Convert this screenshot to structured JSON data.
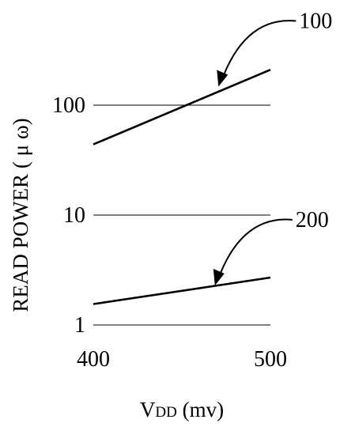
{
  "chart_data": {
    "type": "line",
    "title": "",
    "ylabel": "READ POWER ( μ ω)",
    "xlabel_main": "V",
    "xlabel_sub": "DD",
    "xlabel_unit": " (mv)",
    "y_scale": "log",
    "ylim": [
      1,
      100
    ],
    "xlim": [
      400,
      500
    ],
    "grid": true,
    "x_ticks": [
      {
        "value": 400,
        "label": "400"
      },
      {
        "value": 500,
        "label": "500"
      }
    ],
    "y_ticks": [
      {
        "value": 1,
        "label": "1"
      },
      {
        "value": 10,
        "label": "10"
      },
      {
        "value": 100,
        "label": "100"
      }
    ],
    "series": [
      {
        "x": [
          400,
          500
        ],
        "y": [
          44,
          210
        ]
      },
      {
        "x": [
          400,
          500
        ],
        "y": [
          1.55,
          2.7
        ]
      }
    ],
    "annotations": [
      {
        "label": "100",
        "x": 472,
        "y": 150
      },
      {
        "label": "200",
        "x": 470,
        "y": 2.33
      }
    ]
  }
}
